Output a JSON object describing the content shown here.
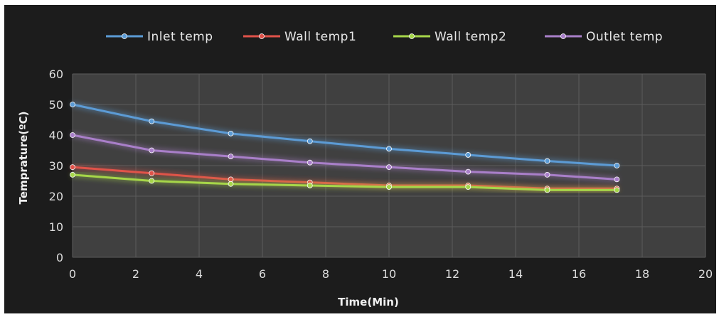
{
  "chart_data": {
    "type": "line",
    "title": "",
    "xlabel": "Time(Min)",
    "ylabel": "Temprature(ºC)",
    "xlim": [
      0,
      20
    ],
    "ylim": [
      0,
      60
    ],
    "x_ticks": [
      0,
      2,
      4,
      6,
      8,
      10,
      12,
      14,
      16,
      18,
      20
    ],
    "y_ticks": [
      0,
      10,
      20,
      30,
      40,
      50,
      60
    ],
    "grid": true,
    "legend_position": "top",
    "background_color": "#1c1c1c",
    "plot_background_color": "#404040",
    "series": [
      {
        "name": "Inlet temp",
        "color": "#5b9bd5",
        "x": [
          0,
          2.5,
          5,
          7.5,
          10,
          12.5,
          15,
          17.2
        ],
        "y": [
          50,
          44.5,
          40.5,
          38,
          35.5,
          33.5,
          31.5,
          30
        ]
      },
      {
        "name": "Wall temp1",
        "color": "#e0524a",
        "x": [
          0,
          2.5,
          5,
          7.5,
          10,
          12.5,
          15,
          17.2
        ],
        "y": [
          29.5,
          27.5,
          25.5,
          24.5,
          23.5,
          23.5,
          22.5,
          22.5
        ]
      },
      {
        "name": "Wall temp2",
        "color": "#a6d64a",
        "x": [
          0,
          2.5,
          5,
          7.5,
          10,
          12.5,
          15,
          17.2
        ],
        "y": [
          27,
          25,
          24,
          23.5,
          23,
          23,
          22,
          22
        ]
      },
      {
        "name": "Outlet temp",
        "color": "#a97fc9",
        "x": [
          0,
          2.5,
          5,
          7.5,
          10,
          12.5,
          15,
          17.2
        ],
        "y": [
          40,
          35,
          33,
          31,
          29.5,
          28,
          27,
          25.5
        ]
      }
    ]
  }
}
